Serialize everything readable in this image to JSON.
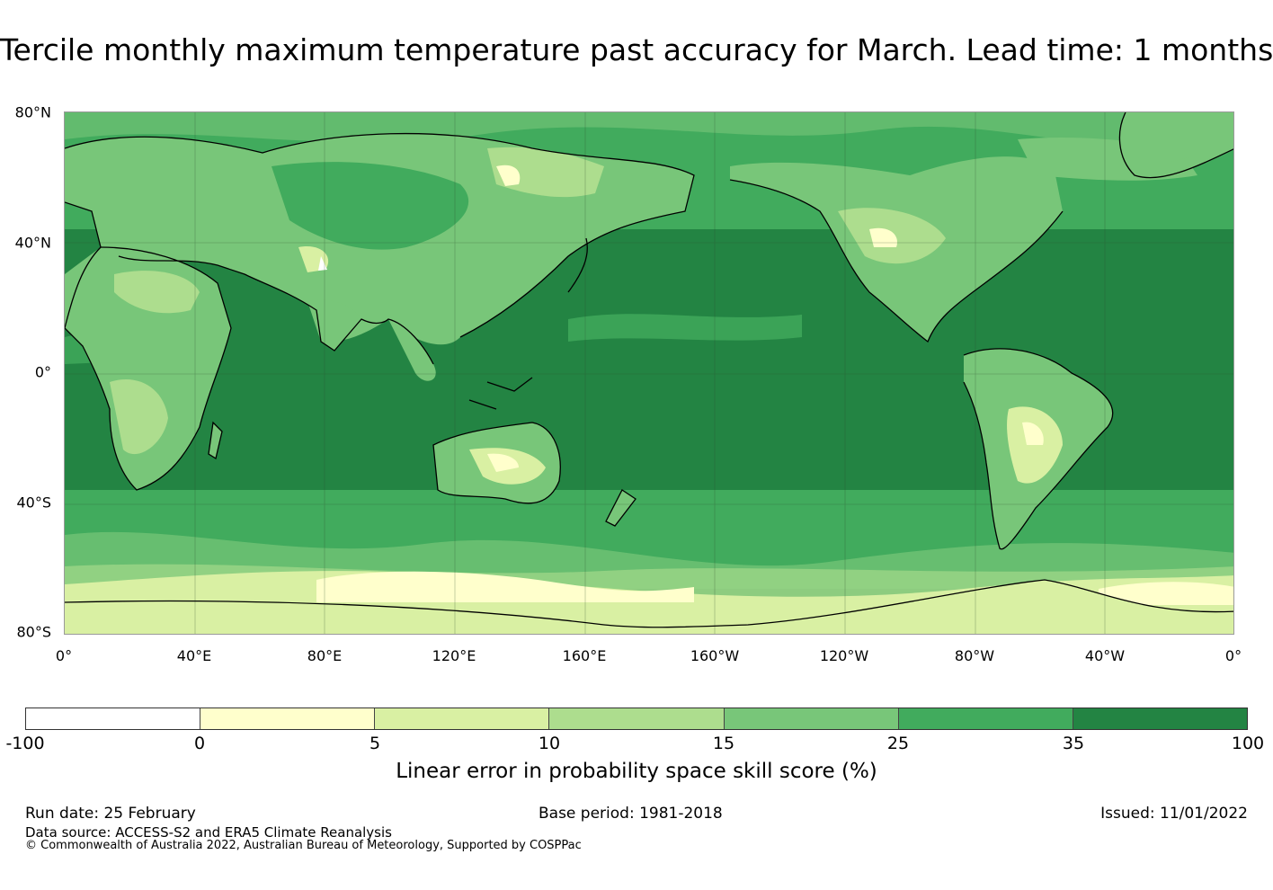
{
  "title": "Tercile monthly maximum temperature past accuracy for March. Lead time: 1 months",
  "map": {
    "lat_labels": [
      "80°N",
      "40°N",
      "0°",
      "40°S",
      "80°S"
    ],
    "lon_labels": [
      "0°",
      "40°E",
      "80°E",
      "120°E",
      "160°E",
      "160°W",
      "120°W",
      "80°W",
      "40°W",
      "0°"
    ],
    "lat_range": [
      -80,
      80
    ],
    "lon_range": [
      0,
      360
    ]
  },
  "colorbar": {
    "label": "Linear error in probability space skill score (%)",
    "ticks": [
      "-100",
      "0",
      "5",
      "10",
      "15",
      "25",
      "35",
      "100"
    ],
    "colors": [
      "#ffffff",
      "#ffffcc",
      "#d9f0a3",
      "#addd8e",
      "#78c679",
      "#41ab5d",
      "#238443"
    ]
  },
  "footer": {
    "run_date": "Run date: 25 February",
    "base_period": "Base period: 1981-2018",
    "issued": "Issued: 11/01/2022",
    "data_source": "Data source: ACCESS-S2 and ERA5 Climate Reanalysis",
    "copyright": "© Commonwealth of Australia 2022, Australian Bureau of Meteorology, Supported by COSPPac"
  }
}
